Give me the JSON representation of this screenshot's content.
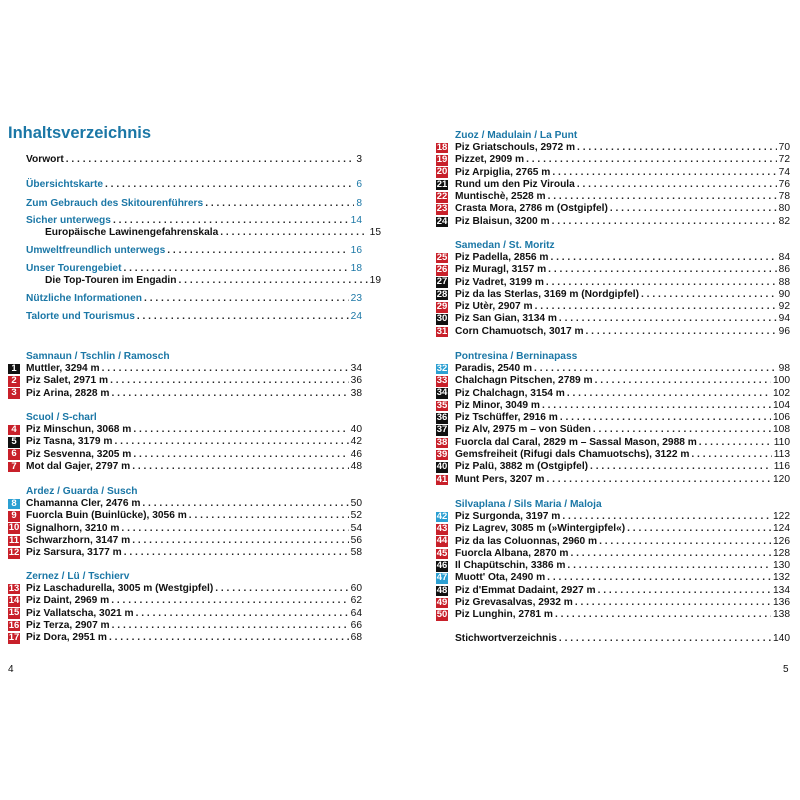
{
  "left_page": {
    "title": "Inhaltsverzeichnis",
    "page_number": "4",
    "intro": [
      {
        "label": "Vorwort",
        "page": "3",
        "style": "black"
      },
      {
        "label": "Übersichtskarte",
        "page": "6",
        "style": "blue"
      },
      {
        "label": "Zum Gebrauch des Skitourenführers",
        "page": "8",
        "style": "blue"
      },
      {
        "label": "Sicher unterwegs",
        "page": "14",
        "style": "blue"
      },
      {
        "label": "Europäische Lawinengefahrenskala",
        "page": "15",
        "style": "sub"
      },
      {
        "label": "Umweltfreundlich unterwegs",
        "page": "16",
        "style": "blue"
      },
      {
        "label": "Unser Tourengebiet",
        "page": "18",
        "style": "blue"
      },
      {
        "label": "Die Top-Touren im Engadin",
        "page": "19",
        "style": "sub"
      },
      {
        "label": "Nützliche Informationen",
        "page": "23",
        "style": "blue"
      },
      {
        "label": "Talorte und Tourismus",
        "page": "24",
        "style": "blue"
      }
    ],
    "sections": [
      {
        "heading": "Samnaun / Tschlin / Ramosch",
        "items": [
          {
            "num": "1",
            "color": "black",
            "label": "Muttler, 3294 m",
            "page": "34"
          },
          {
            "num": "2",
            "color": "red",
            "label": "Piz Salet, 2971 m",
            "page": "36"
          },
          {
            "num": "3",
            "color": "red",
            "label": "Piz Arina, 2828 m",
            "page": "38"
          }
        ]
      },
      {
        "heading": "Scuol / S-charl",
        "items": [
          {
            "num": "4",
            "color": "red",
            "label": "Piz Minschun, 3068 m",
            "page": "40"
          },
          {
            "num": "5",
            "color": "black",
            "label": "Piz Tasna, 3179 m",
            "page": "42"
          },
          {
            "num": "6",
            "color": "red",
            "label": "Piz Sesvenna, 3205 m",
            "page": "46"
          },
          {
            "num": "7",
            "color": "red",
            "label": "Mot dal Gajer, 2797 m",
            "page": "48"
          }
        ]
      },
      {
        "heading": "Ardez / Guarda / Susch",
        "items": [
          {
            "num": "8",
            "color": "lightblue",
            "label": "Chamanna Cler, 2476 m",
            "page": "50"
          },
          {
            "num": "9",
            "color": "red",
            "label": "Fuorcla Buin (Buinlücke), 3056 m",
            "page": "52"
          },
          {
            "num": "10",
            "color": "red",
            "label": "Signalhorn, 3210 m",
            "page": "54"
          },
          {
            "num": "11",
            "color": "red",
            "label": "Schwarzhorn, 3147 m",
            "page": "56"
          },
          {
            "num": "12",
            "color": "red",
            "label": "Piz Sarsura, 3177 m",
            "page": "58"
          }
        ]
      },
      {
        "heading": "Zernez / Lü / Tschierv",
        "items": [
          {
            "num": "13",
            "color": "red",
            "label": "Piz Laschadurella, 3005 m (Westgipfel)",
            "page": "60"
          },
          {
            "num": "14",
            "color": "red",
            "label": "Piz Daint, 2969 m",
            "page": "62"
          },
          {
            "num": "15",
            "color": "red",
            "label": "Piz Vallatscha, 3021 m",
            "page": "64"
          },
          {
            "num": "16",
            "color": "red",
            "label": "Piz Terza, 2907 m",
            "page": "66"
          },
          {
            "num": "17",
            "color": "red",
            "label": "Piz Dora, 2951 m",
            "page": "68"
          }
        ]
      }
    ]
  },
  "right_page": {
    "page_number": "5",
    "sections": [
      {
        "heading": "Zuoz / Madulain / La Punt",
        "items": [
          {
            "num": "18",
            "color": "red",
            "label": "Piz Griatschouls, 2972 m",
            "page": "70"
          },
          {
            "num": "19",
            "color": "red",
            "label": "Pizzet, 2909 m",
            "page": "72"
          },
          {
            "num": "20",
            "color": "red",
            "label": "Piz Arpiglia, 2765 m",
            "page": "74"
          },
          {
            "num": "21",
            "color": "black",
            "label": "Rund um den Piz Viroula",
            "page": "76"
          },
          {
            "num": "22",
            "color": "red",
            "label": "Muntischè, 2528 m",
            "page": "78"
          },
          {
            "num": "23",
            "color": "red",
            "label": "Crasta Mora, 2786 m (Ostgipfel)",
            "page": "80"
          },
          {
            "num": "24",
            "color": "black",
            "label": "Piz Blaisun, 3200 m",
            "page": "82"
          }
        ]
      },
      {
        "heading": "Samedan / St. Moritz",
        "items": [
          {
            "num": "25",
            "color": "red",
            "label": "Piz Padella, 2856 m",
            "page": "84"
          },
          {
            "num": "26",
            "color": "red",
            "label": "Piz Muragl, 3157 m",
            "page": "86"
          },
          {
            "num": "27",
            "color": "black",
            "label": "Piz Vadret, 3199 m",
            "page": "88"
          },
          {
            "num": "28",
            "color": "black",
            "label": "Piz da las Sterlas, 3169 m (Nordgipfel)",
            "page": "90"
          },
          {
            "num": "29",
            "color": "red",
            "label": "Piz Utèr, 2907 m",
            "page": "92"
          },
          {
            "num": "30",
            "color": "black",
            "label": "Piz San Gian, 3134 m",
            "page": "94"
          },
          {
            "num": "31",
            "color": "red",
            "label": "Corn Chamuotsch, 3017 m",
            "page": "96"
          }
        ]
      },
      {
        "heading": "Pontresina / Berninapass",
        "items": [
          {
            "num": "32",
            "color": "lightblue",
            "label": "Paradis, 2540 m",
            "page": "98"
          },
          {
            "num": "33",
            "color": "red",
            "label": "Chalchagn Pitschen, 2789 m",
            "page": "100"
          },
          {
            "num": "34",
            "color": "black",
            "label": "Piz Chalchagn, 3154 m",
            "page": "102"
          },
          {
            "num": "35",
            "color": "red",
            "label": "Piz Minor, 3049 m",
            "page": "104"
          },
          {
            "num": "36",
            "color": "black",
            "label": "Piz Tschüffer, 2916 m",
            "page": "106"
          },
          {
            "num": "37",
            "color": "black",
            "label": "Piz Alv, 2975 m – von Süden",
            "page": "108"
          },
          {
            "num": "38",
            "color": "red",
            "label": "Fuorcla dal Caral, 2829 m – Sassal Mason, 2988 m",
            "page": "110"
          },
          {
            "num": "39",
            "color": "red",
            "label": "Gemsfreiheit (Rifugi dals Chamuotschs), 3122 m",
            "page": "113"
          },
          {
            "num": "40",
            "color": "black",
            "label": "Piz Palü, 3882 m (Ostgipfel)",
            "page": "116"
          },
          {
            "num": "41",
            "color": "red",
            "label": "Munt Pers, 3207 m",
            "page": "120"
          }
        ]
      },
      {
        "heading": "Silvaplana / Sils Maria / Maloja",
        "items": [
          {
            "num": "42",
            "color": "lightblue",
            "label": "Piz Surgonda, 3197 m",
            "page": "122"
          },
          {
            "num": "43",
            "color": "red",
            "label": "Piz Lagrev, 3085 m (»Wintergipfel«)",
            "page": "124"
          },
          {
            "num": "44",
            "color": "red",
            "label": "Piz da las Coluonnas, 2960 m",
            "page": "126"
          },
          {
            "num": "45",
            "color": "red",
            "label": "Fuorcla Albana, 2870 m",
            "page": "128"
          },
          {
            "num": "46",
            "color": "black",
            "label": "Il Chapütschin, 3386 m",
            "page": "130"
          },
          {
            "num": "47",
            "color": "lightblue",
            "label": "Muott' Ota, 2490 m",
            "page": "132"
          },
          {
            "num": "48",
            "color": "black",
            "label": "Piz d'Emmat Dadaint, 2927 m",
            "page": "134"
          },
          {
            "num": "49",
            "color": "red",
            "label": "Piz Grevasalvas, 2932 m",
            "page": "136"
          },
          {
            "num": "50",
            "color": "red",
            "label": "Piz Lunghin, 2781 m",
            "page": "138"
          }
        ]
      }
    ],
    "index": {
      "label": "Stichwortverzeichnis",
      "page": "140"
    }
  },
  "colors": {
    "heading": "#1b77a6",
    "red": "#c8202a",
    "black": "#111111",
    "lightblue": "#2b9fd2"
  }
}
